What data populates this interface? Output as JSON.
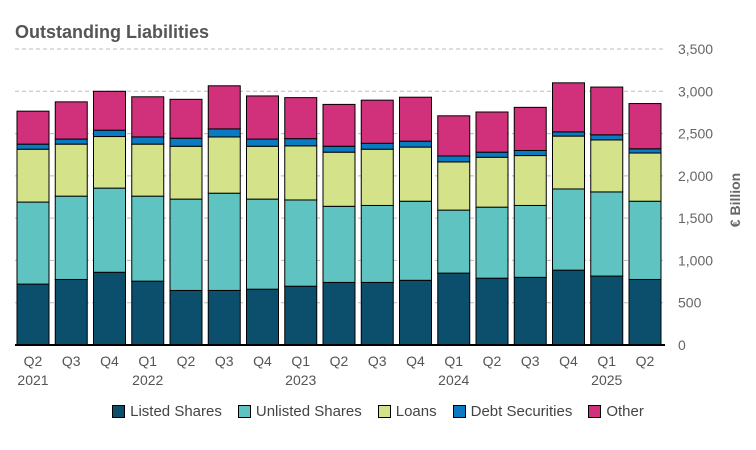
{
  "chart_data": {
    "type": "bar",
    "stacked": true,
    "title": "Outstanding Liabilities",
    "ylabel": "€ Billion",
    "ylim": [
      0,
      3500
    ],
    "yticks": [
      0,
      500,
      1000,
      1500,
      2000,
      2500,
      3000,
      3500
    ],
    "ytick_labels": [
      "0",
      "500",
      "1,000",
      "1,500",
      "2,000",
      "2,500",
      "3,000",
      "3,500"
    ],
    "grid": true,
    "legend_position": "bottom",
    "categories": [
      "Q2 2021",
      "Q3 2021",
      "Q4 2021",
      "Q1 2022",
      "Q2 2022",
      "Q3 2022",
      "Q4 2022",
      "Q1 2023",
      "Q2 2023",
      "Q3 2023",
      "Q4 2023",
      "Q1 2024",
      "Q2 2024",
      "Q3 2024",
      "Q4 2024",
      "Q1 2025",
      "Q2 2025"
    ],
    "x_labels": [
      [
        "Q2",
        "2021"
      ],
      [
        "Q3",
        ""
      ],
      [
        "Q4",
        ""
      ],
      [
        "Q1",
        "2022"
      ],
      [
        "Q2",
        ""
      ],
      [
        "Q3",
        ""
      ],
      [
        "Q4",
        ""
      ],
      [
        "Q1",
        "2023"
      ],
      [
        "Q2",
        ""
      ],
      [
        "Q3",
        ""
      ],
      [
        "Q4",
        ""
      ],
      [
        "Q1",
        "2024"
      ],
      [
        "Q2",
        ""
      ],
      [
        "Q3",
        ""
      ],
      [
        "Q4",
        ""
      ],
      [
        "Q1",
        "2025"
      ],
      [
        "Q2",
        ""
      ]
    ],
    "series": [
      {
        "name": "Listed Shares",
        "color": "#0b4f6c",
        "values": [
          720,
          775,
          860,
          755,
          645,
          645,
          660,
          695,
          740,
          740,
          765,
          850,
          790,
          800,
          885,
          815,
          775
        ]
      },
      {
        "name": "Unlisted Shares",
        "color": "#5fc4c1",
        "values": [
          970,
          985,
          995,
          1005,
          1080,
          1150,
          1065,
          1020,
          900,
          910,
          935,
          745,
          840,
          850,
          960,
          995,
          925
        ]
      },
      {
        "name": "Loans",
        "color": "#d4e28a",
        "values": [
          625,
          615,
          610,
          615,
          625,
          665,
          625,
          640,
          640,
          665,
          640,
          570,
          590,
          590,
          625,
          615,
          570
        ]
      },
      {
        "name": "Debt Securities",
        "color": "#0a7bc0",
        "values": [
          60,
          60,
          75,
          85,
          95,
          95,
          85,
          85,
          70,
          70,
          70,
          70,
          60,
          60,
          50,
          60,
          50
        ]
      },
      {
        "name": "Other",
        "color": "#d0317a",
        "values": [
          390,
          440,
          460,
          475,
          460,
          510,
          510,
          485,
          495,
          510,
          520,
          475,
          475,
          510,
          580,
          565,
          535
        ]
      }
    ]
  }
}
